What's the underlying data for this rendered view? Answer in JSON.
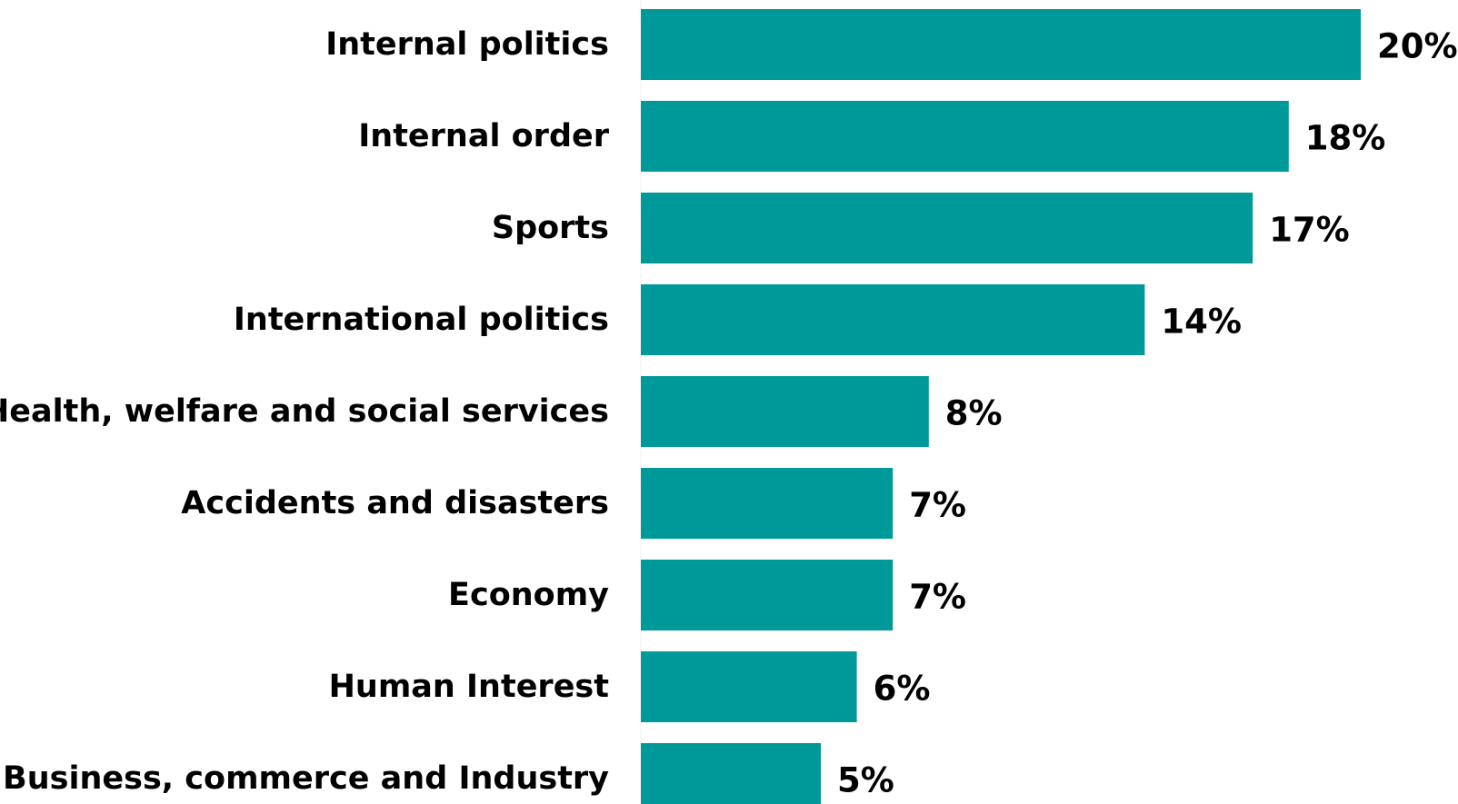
{
  "chart_data": {
    "type": "bar",
    "orientation": "horizontal",
    "categories": [
      "Internal politics",
      "Internal order",
      "Sports",
      "International politics",
      "Health, welfare and social services",
      "Accidents and disasters",
      "Economy",
      "Human Interest",
      "Business, commerce and Industry"
    ],
    "values": [
      20,
      18,
      17,
      14,
      8,
      7,
      7,
      6,
      5
    ],
    "value_labels": [
      "20%",
      "18%",
      "17%",
      "14%",
      "8%",
      "7%",
      "7%",
      "6%",
      "5%"
    ],
    "unit": "%",
    "bar_color": "#009999",
    "label_color": "#000000",
    "grid": false,
    "legend": false
  }
}
